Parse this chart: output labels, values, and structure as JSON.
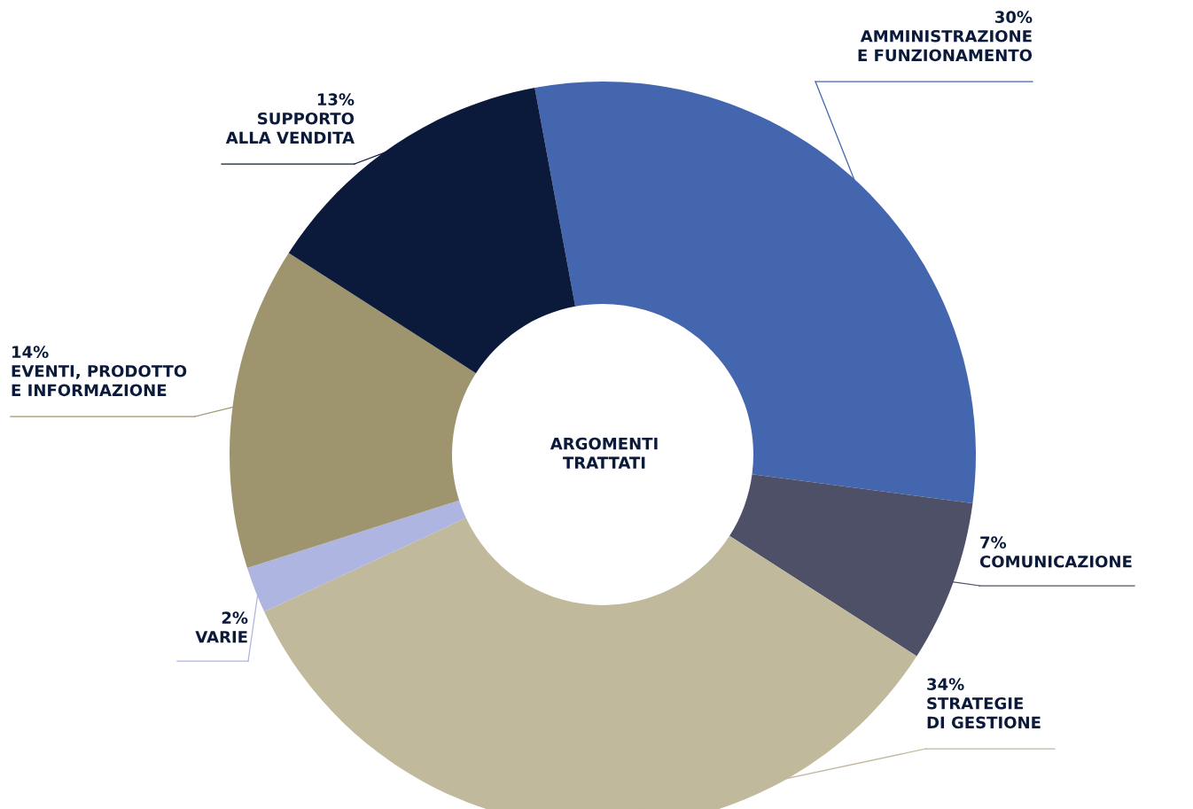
{
  "chart_data": {
    "type": "donut",
    "categories": [
      "AMMINISTRAZIONE\nE FUNZIONAMENTO",
      "COMUNICAZIONE",
      "STRATEGIE\nDI GESTIONE",
      "VARIE",
      "EVENTI, PRODOTTO\nE INFORMAZIONE",
      "SUPPORTO\nALLA VENDITA"
    ],
    "values": [
      30,
      7,
      34,
      2,
      14,
      13
    ],
    "colors": [
      "#4466ae",
      "#4e5068",
      "#c0b99c",
      "#adb5e0",
      "#9e956e",
      "#0b193b"
    ],
    "value_labels": [
      "30%",
      "7%",
      "34%",
      "2%",
      "14%",
      "13%"
    ],
    "annotations": [
      "ARGOMENTI\nTRATTATI"
    ]
  }
}
